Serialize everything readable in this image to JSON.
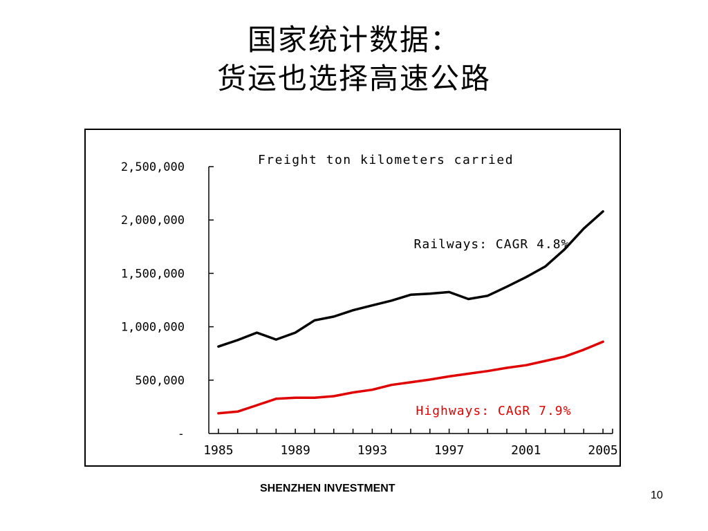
{
  "slide": {
    "title_line1": "国家统计数据：",
    "title_line2": "货运也选择高速公路",
    "footer": "SHENZHEN INVESTMENT",
    "page_number": "10"
  },
  "chart_data": {
    "type": "line",
    "title": "Freight ton kilometers carried",
    "xlabel": "",
    "ylabel": "",
    "xlim": [
      1984.5,
      2005.5
    ],
    "ylim": [
      0,
      2500000
    ],
    "x": [
      1985,
      1986,
      1987,
      1988,
      1989,
      1990,
      1991,
      1992,
      1993,
      1994,
      1995,
      1996,
      1997,
      1998,
      1999,
      2000,
      2001,
      2002,
      2003,
      2004,
      2005
    ],
    "xticks": [
      1985,
      1989,
      1993,
      1997,
      2001,
      2005
    ],
    "xtick_labels": [
      "1985",
      "1989",
      "1993",
      "1997",
      "2001",
      "2005"
    ],
    "yticks": [
      0,
      500000,
      1000000,
      1500000,
      2000000,
      2500000
    ],
    "ytick_labels": [
      "-",
      "500,000",
      "1,000,000",
      "1,500,000",
      "2,000,000",
      "2,500,000"
    ],
    "grid": false,
    "legend": "none",
    "series": [
      {
        "name": "Railways: CAGR 4.8%",
        "color": "#000000",
        "values": [
          815000,
          875000,
          945000,
          880000,
          945000,
          1060000,
          1095000,
          1155000,
          1200000,
          1245000,
          1300000,
          1310000,
          1325000,
          1260000,
          1290000,
          1375000,
          1465000,
          1565000,
          1725000,
          1920000,
          2080000
        ]
      },
      {
        "name": "Highways: CAGR 7.9%",
        "color": "#e00000",
        "values": [
          190000,
          205000,
          265000,
          325000,
          335000,
          335000,
          350000,
          385000,
          410000,
          455000,
          480000,
          505000,
          535000,
          560000,
          585000,
          615000,
          640000,
          680000,
          720000,
          785000,
          860000
        ]
      }
    ]
  }
}
